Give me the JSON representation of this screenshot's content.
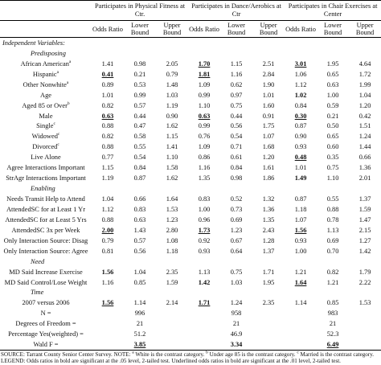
{
  "table": {
    "groups": [
      "Participates in Physical Fitness at Ctr.",
      "Participates in Dance/Aerobics at Ctr",
      "Participates in Chair Exercises at Center"
    ],
    "subheaders": [
      "Odds Ratio",
      "Lower Bound",
      "Upper Bound",
      "Odds Ratio",
      "Lower Bound",
      "Upper Bound",
      "Odds Ratio",
      "Lower Bound",
      "Upper Bound"
    ],
    "rows": [
      {
        "section": "Independent Variables:"
      },
      {
        "section": "Predisposing"
      },
      {
        "label": "African American",
        "sup": "a",
        "values": [
          "1.41",
          "0.98",
          "2.05",
          "1.70",
          "1.15",
          "2.51",
          "3.01",
          "1.95",
          "4.64"
        ],
        "bold": [
          3,
          6
        ],
        "underline": [
          3,
          6
        ]
      },
      {
        "label": "Hispanic",
        "sup": "a",
        "values": [
          "0.41",
          "0.21",
          "0.79",
          "1.81",
          "1.16",
          "2.84",
          "1.06",
          "0.65",
          "1.72"
        ],
        "bold": [
          0,
          3
        ],
        "underline": [
          0,
          3
        ]
      },
      {
        "label": "Other Nonwhite",
        "sup": "a",
        "values": [
          "0.89",
          "0.53",
          "1.48",
          "1.09",
          "0.62",
          "1.90",
          "1.12",
          "0.63",
          "1.99"
        ]
      },
      {
        "label": "Age",
        "values": [
          "1.01",
          "0.99",
          "1.03",
          "0.99",
          "0.97",
          "1.01",
          "1.02",
          "1.00",
          "1.04"
        ],
        "bold": [
          6
        ]
      },
      {
        "label": "Aged 85 or Over",
        "sup": "b",
        "values": [
          "0.82",
          "0.57",
          "1.19",
          "1.10",
          "0.75",
          "1.60",
          "0.84",
          "0.59",
          "1.20"
        ]
      },
      {
        "label": "Male",
        "values": [
          "0.63",
          "0.44",
          "0.90",
          "0.63",
          "0.44",
          "0.91",
          "0.30",
          "0.21",
          "0.42"
        ],
        "bold": [
          0,
          3,
          6
        ],
        "underline": [
          0,
          3,
          6
        ]
      },
      {
        "label": "Single",
        "sup": "c",
        "values": [
          "0.88",
          "0.47",
          "1.62",
          "0.99",
          "0.56",
          "1.75",
          "0.87",
          "0.50",
          "1.51"
        ]
      },
      {
        "label": "Widowed",
        "sup": "c",
        "values": [
          "0.82",
          "0.58",
          "1.15",
          "0.76",
          "0.54",
          "1.07",
          "0.90",
          "0.65",
          "1.24"
        ]
      },
      {
        "label": "Divorced",
        "sup": "c",
        "values": [
          "0.88",
          "0.55",
          "1.41",
          "1.09",
          "0.71",
          "1.68",
          "0.93",
          "0.60",
          "1.44"
        ]
      },
      {
        "label": "Live Alone",
        "values": [
          "0.77",
          "0.54",
          "1.10",
          "0.86",
          "0.61",
          "1.20",
          "0.48",
          "0.35",
          "0.66"
        ],
        "bold": [
          6
        ],
        "underline": [
          6
        ]
      },
      {
        "label": "Agree Interactions Important",
        "values": [
          "1.15",
          "0.84",
          "1.58",
          "1.16",
          "0.84",
          "1.61",
          "1.01",
          "0.75",
          "1.36"
        ]
      },
      {
        "label": "StrAgr Interactions Important",
        "values": [
          "1.19",
          "0.87",
          "1.62",
          "1.35",
          "0.98",
          "1.86",
          "1.49",
          "1.10",
          "2.01"
        ],
        "bold": [
          6
        ]
      },
      {
        "section": "Enabling"
      },
      {
        "label": "Needs Transit Help to Attend",
        "values": [
          "1.04",
          "0.66",
          "1.64",
          "0.83",
          "0.52",
          "1.32",
          "0.87",
          "0.55",
          "1.37"
        ]
      },
      {
        "label": "AttendedSC for at Least 1 Yr",
        "values": [
          "1.12",
          "0.83",
          "1.53",
          "1.00",
          "0.73",
          "1.36",
          "1.18",
          "0.88",
          "1.59"
        ]
      },
      {
        "label": "AttendedSC for at Least 5 Yrs",
        "values": [
          "0.88",
          "0.63",
          "1.23",
          "0.96",
          "0.69",
          "1.35",
          "1.07",
          "0.78",
          "1.47"
        ]
      },
      {
        "label": "AttendedSC 3x per Week",
        "values": [
          "2.00",
          "1.43",
          "2.80",
          "1.73",
          "1.23",
          "2.43",
          "1.56",
          "1.13",
          "2.15"
        ],
        "bold": [
          0,
          3,
          6
        ],
        "underline": [
          0,
          3,
          6
        ]
      },
      {
        "label": "Only Interaction Source: Disag",
        "values": [
          "0.79",
          "0.57",
          "1.08",
          "0.92",
          "0.67",
          "1.28",
          "0.93",
          "0.69",
          "1.27"
        ]
      },
      {
        "label": "Only Interaction Source: Agree",
        "values": [
          "0.81",
          "0.56",
          "1.18",
          "0.93",
          "0.64",
          "1.37",
          "1.00",
          "0.70",
          "1.42"
        ]
      },
      {
        "section": "Need"
      },
      {
        "label": "MD Said Increase Exercise",
        "values": [
          "1.56",
          "1.04",
          "2.35",
          "1.13",
          "0.75",
          "1.71",
          "1.21",
          "0.82",
          "1.79"
        ],
        "bold": [
          0
        ]
      },
      {
        "label": "MD Said Control/Lose Weight",
        "values": [
          "1.16",
          "0.85",
          "1.59",
          "1.42",
          "1.03",
          "1.95",
          "1.64",
          "1.21",
          "2.22"
        ],
        "bold": [
          3,
          6
        ],
        "underline": [
          6
        ]
      },
      {
        "section": "Time"
      },
      {
        "label": "2007 versus 2006",
        "values": [
          "1.56",
          "1.14",
          "2.14",
          "1.71",
          "1.24",
          "2.35",
          "1.14",
          "0.85",
          "1.53"
        ],
        "bold": [
          0,
          3
        ],
        "underline": [
          0,
          3
        ]
      },
      {
        "label": "N =",
        "values": [
          "996",
          "958",
          "983"
        ]
      },
      {
        "label": "Degrees of Freedom =",
        "values": [
          "21",
          "21",
          "21"
        ]
      },
      {
        "label": "Percentage Yes(weighted) =",
        "values": [
          "51.2",
          "46.9",
          "52.3"
        ]
      },
      {
        "label": "Wald F =",
        "values": [
          "3.85",
          "3.34",
          "6.49"
        ],
        "bold": [
          0,
          1,
          2
        ],
        "underline": [
          0,
          2
        ]
      }
    ]
  },
  "footer": [
    {
      "text": "SOURCE: Tarrant County Senior Center Survey. NOTE: "
    },
    {
      "sup": "a"
    },
    {
      "text": " White is the contrast category. "
    },
    {
      "sup": "b"
    },
    {
      "text": " Under age 85 is the contrast category. "
    },
    {
      "sup": "c"
    },
    {
      "text": " Married is the contrast category. LEGEND: Odds ratios in bold are significant at the .05 level, 2-tailed test. Underlined odds ratios in bold are significant at the .01 level, 2-tailed test."
    }
  ]
}
